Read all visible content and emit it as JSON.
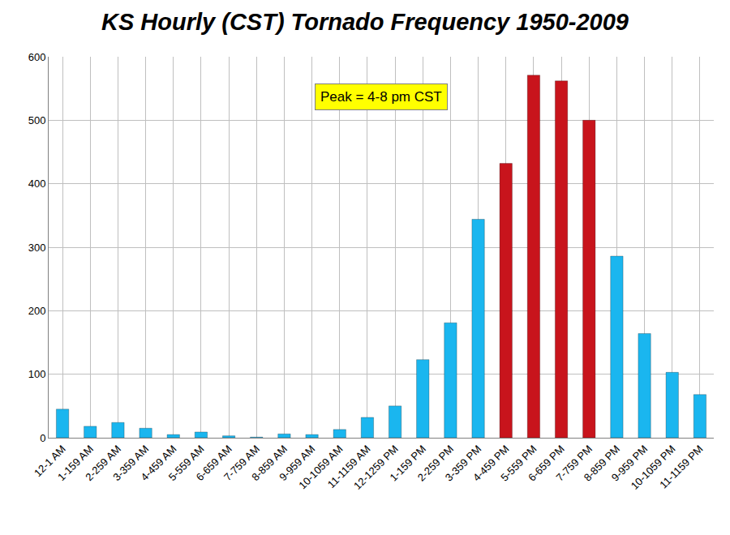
{
  "chart_data": {
    "type": "bar",
    "title": "KS Hourly (CST) Tornado Frequency 1950-2009",
    "categories": [
      "12-1 AM",
      "1-159 AM",
      "2-259 AM",
      "3-359 AM",
      "4-459 AM",
      "5-559 AM",
      "6-659 AM",
      "7-759 AM",
      "8-859 AM",
      "9-959 AM",
      "10-1059 AM",
      "11-1159 AM",
      "12-1259 PM",
      "1-159 PM",
      "2-259 PM",
      "3-359 PM",
      "4-459 PM",
      "5-559 PM",
      "6-659 PM",
      "7-759 PM",
      "8-859 PM",
      "9-959 PM",
      "10-1059 PM",
      "11-1159 PM"
    ],
    "values": [
      45,
      18,
      24,
      15,
      5,
      9,
      3,
      1,
      6,
      5,
      13,
      32,
      50,
      123,
      181,
      344,
      432,
      571,
      562,
      500,
      286,
      164,
      103,
      68
    ],
    "colors": [
      "#1ab6ef",
      "#1ab6ef",
      "#1ab6ef",
      "#1ab6ef",
      "#1ab6ef",
      "#1ab6ef",
      "#1ab6ef",
      "#1ab6ef",
      "#1ab6ef",
      "#1ab6ef",
      "#1ab6ef",
      "#1ab6ef",
      "#1ab6ef",
      "#1ab6ef",
      "#1ab6ef",
      "#1ab6ef",
      "#c8141c",
      "#c8141c",
      "#c8141c",
      "#c8141c",
      "#1ab6ef",
      "#1ab6ef",
      "#1ab6ef",
      "#1ab6ef"
    ],
    "ylim": [
      0,
      600
    ],
    "yticks": [
      0,
      100,
      200,
      300,
      400,
      500,
      600
    ],
    "grid": true,
    "annotations": [
      "Peak = 4-8 pm CST"
    ]
  }
}
